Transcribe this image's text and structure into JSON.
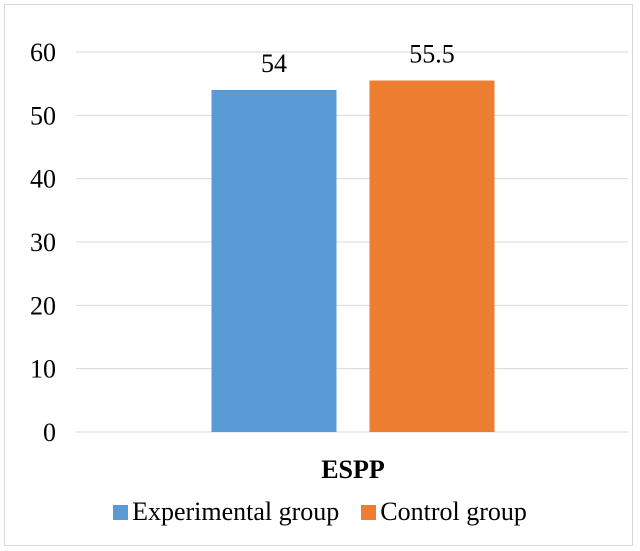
{
  "chart_data": {
    "type": "bar",
    "categories": [
      "ESPP"
    ],
    "series": [
      {
        "name": "Experimental group",
        "values": [
          54
        ],
        "color": "#5b9bd5"
      },
      {
        "name": "Control group",
        "values": [
          55.5
        ],
        "color": "#ed7d31"
      }
    ],
    "title": "",
    "xlabel": "",
    "ylabel": "",
    "ylim": [
      0,
      60
    ],
    "yticks": [
      "0",
      "10",
      "20",
      "30",
      "40",
      "50",
      "60"
    ],
    "data_labels": [
      "54",
      "55.5"
    ],
    "grid": true,
    "legend_position": "bottom",
    "gridline_color": "#d9d9d9"
  }
}
